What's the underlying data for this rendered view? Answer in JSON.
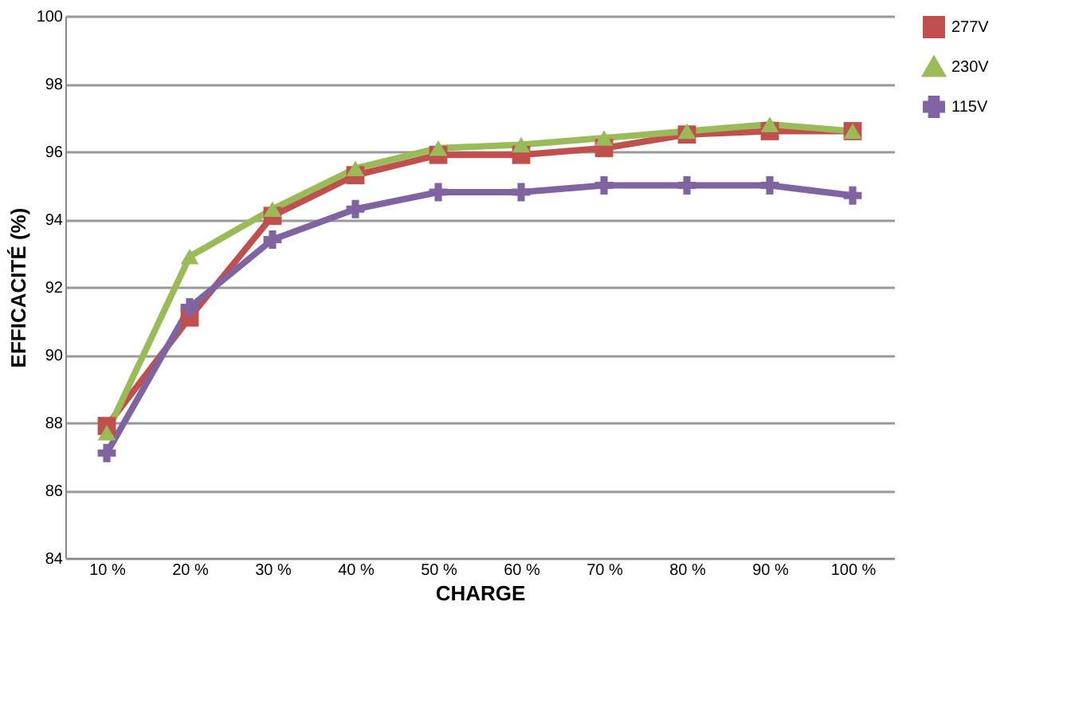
{
  "chart_data": {
    "type": "line",
    "xlabel": "CHARGE",
    "ylabel": "EFFICACITÉ (%)",
    "categories": [
      "10 %",
      "20 %",
      "30 %",
      "40 %",
      "50 %",
      "60 %",
      "70 %",
      "80 %",
      "90 %",
      "100 %"
    ],
    "series": [
      {
        "name": "277V",
        "color": "#c0504d",
        "marker": "square",
        "values": [
          87.9,
          91.1,
          94.1,
          95.3,
          95.9,
          95.9,
          96.1,
          96.5,
          96.6,
          96.6
        ]
      },
      {
        "name": "230V",
        "color": "#9bbb59",
        "marker": "triangle",
        "values": [
          87.7,
          92.9,
          94.3,
          95.5,
          96.1,
          96.2,
          96.4,
          96.6,
          96.8,
          96.6
        ]
      },
      {
        "name": "115V",
        "color": "#8064a2",
        "marker": "cross",
        "values": [
          87.1,
          91.4,
          93.4,
          94.3,
          94.8,
          94.8,
          95.0,
          95.0,
          95.0,
          94.7
        ]
      }
    ],
    "ylim": [
      84,
      100
    ],
    "yticks": [
      84,
      86,
      88,
      90,
      92,
      94,
      96,
      98,
      100
    ],
    "grid": "y",
    "legend": "right"
  }
}
